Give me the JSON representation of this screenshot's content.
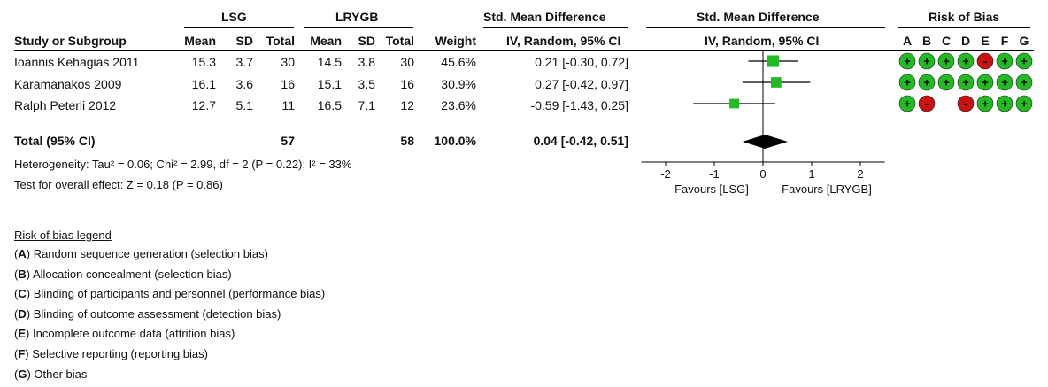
{
  "table": {
    "group_headers": {
      "left": "LSG",
      "right": "LRYGB",
      "smd_table": "Std. Mean Difference",
      "smd_plot": "Std. Mean Difference",
      "rob": "Risk of Bias"
    },
    "col_headers": {
      "study": "Study or Subgroup",
      "mean1": "Mean",
      "sd1": "SD",
      "total1": "Total",
      "mean2": "Mean",
      "sd2": "SD",
      "total2": "Total",
      "weight": "Weight",
      "method_table": "IV, Random, 95% CI",
      "method_plot": "IV, Random, 95% CI"
    },
    "rob_letters": [
      "A",
      "B",
      "C",
      "D",
      "E",
      "F",
      "G"
    ],
    "rows": [
      {
        "study": "Ioannis Kehagias 2011",
        "mean1": "15.3",
        "sd1": "3.7",
        "total1": "30",
        "mean2": "14.5",
        "sd2": "3.8",
        "total2": "30",
        "weight": "45.6%",
        "ci": "0.21 [-0.30, 0.72]"
      },
      {
        "study": "Karamanakos 2009",
        "mean1": "16.1",
        "sd1": "3.6",
        "total1": "16",
        "mean2": "15.1",
        "sd2": "3.5",
        "total2": "16",
        "weight": "30.9%",
        "ci": "0.27 [-0.42, 0.97]"
      },
      {
        "study": "Ralph Peterli 2012",
        "mean1": "12.7",
        "sd1": "5.1",
        "total1": "11",
        "mean2": "16.5",
        "sd2": "7.1",
        "total2": "12",
        "weight": "23.6%",
        "ci": "-0.59 [-1.43, 0.25]"
      }
    ],
    "total": {
      "label": "Total (95% CI)",
      "total1": "57",
      "total2": "58",
      "weight": "100.0%",
      "ci": "0.04 [-0.42, 0.51]"
    },
    "heterogeneity": "Heterogeneity: Tau² = 0.06; Chi² = 2.99, df = 2 (P = 0.22); I² = 33%",
    "overall_effect": "Test for overall effect: Z = 0.18 (P = 0.86)"
  },
  "chart_data": {
    "type": "forest",
    "xlim": [
      -2.5,
      2.5
    ],
    "ticks": [
      -2,
      -1,
      0,
      1,
      2
    ],
    "tick_labels": [
      "-2",
      "-1",
      "0",
      "1",
      "2"
    ],
    "favours_left": "Favours [LSG]",
    "favours_right": "Favours [LRYGB]",
    "studies": [
      {
        "name": "Ioannis Kehagias 2011",
        "estimate": 0.21,
        "lower": -0.3,
        "upper": 0.72,
        "weight": 45.6
      },
      {
        "name": "Karamanakos 2009",
        "estimate": 0.27,
        "lower": -0.42,
        "upper": 0.97,
        "weight": 30.9
      },
      {
        "name": "Ralph Peterli 2012",
        "estimate": -0.59,
        "lower": -1.43,
        "upper": 0.25,
        "weight": 23.6
      }
    ],
    "pooled": {
      "estimate": 0.04,
      "lower": -0.42,
      "upper": 0.51
    },
    "marker_color": "#22bb22"
  },
  "risk_of_bias": {
    "low_color": "#22bb22",
    "high_color": "#cc1111",
    "rows": [
      [
        "+",
        "+",
        "+",
        "+",
        "-",
        "+",
        "+"
      ],
      [
        "+",
        "+",
        "+",
        "+",
        "+",
        "+",
        "+"
      ],
      [
        "+",
        "-",
        "",
        "-",
        "+",
        "+",
        "+"
      ]
    ]
  },
  "legend": {
    "title": "Risk of bias legend",
    "items": [
      {
        "letter": "A",
        "text": " Random sequence generation (selection bias)"
      },
      {
        "letter": "B",
        "text": " Allocation concealment (selection bias)"
      },
      {
        "letter": "C",
        "text": " Blinding of participants and personnel (performance bias)"
      },
      {
        "letter": "D",
        "text": " Blinding of outcome assessment (detection bias)"
      },
      {
        "letter": "E",
        "text": " Incomplete outcome data (attrition bias)"
      },
      {
        "letter": "F",
        "text": " Selective reporting (reporting bias)"
      },
      {
        "letter": "G",
        "text": " Other bias"
      }
    ]
  }
}
